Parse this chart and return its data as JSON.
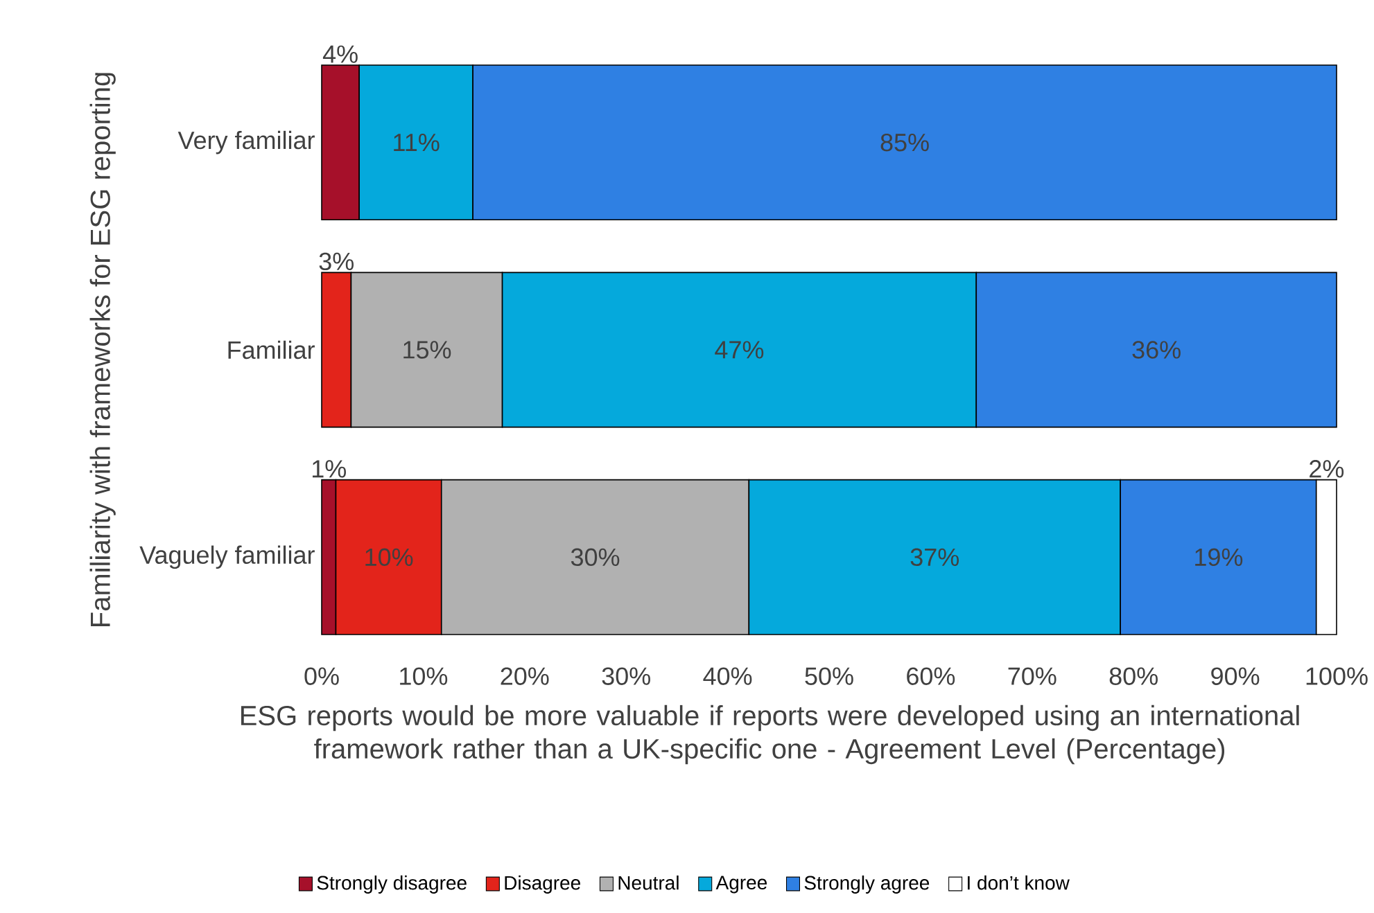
{
  "chart_data": {
    "type": "bar",
    "orientation": "horizontal",
    "stacked": true,
    "ylabel": "Familiarity with frameworks for ESG reporting",
    "xlabel": "ESG reports would be more valuable if reports were developed using an international framework rather than a UK-specific one - Agreement Level (Percentage)",
    "categories": [
      "Very familiar",
      "Familiar",
      "Vaguely familiar"
    ],
    "xlim": [
      0,
      100
    ],
    "xticks": [
      {
        "value": 0,
        "label": "0%"
      },
      {
        "value": 10,
        "label": "10%"
      },
      {
        "value": 20,
        "label": "20%"
      },
      {
        "value": 30,
        "label": "30%"
      },
      {
        "value": 40,
        "label": "40%"
      },
      {
        "value": 50,
        "label": "50%"
      },
      {
        "value": 60,
        "label": "60%"
      },
      {
        "value": 70,
        "label": "70%"
      },
      {
        "value": 80,
        "label": "80%"
      },
      {
        "value": 90,
        "label": "90%"
      },
      {
        "value": 100,
        "label": "100%"
      }
    ],
    "legend": "bottom",
    "series": [
      {
        "name": "Strongly disagree",
        "color": "#a6102a",
        "values": [
          3.7,
          null,
          1.4
        ],
        "value_labels": [
          "4%",
          null,
          "1%"
        ]
      },
      {
        "name": "Disagree",
        "color": "#e3241b",
        "values": [
          null,
          2.9,
          10.4
        ],
        "value_labels": [
          null,
          "3%",
          "10%"
        ]
      },
      {
        "name": "Neutral",
        "color": "#b1b1b1",
        "values": [
          null,
          14.9,
          30.3
        ],
        "value_labels": [
          null,
          "15%",
          "30%"
        ]
      },
      {
        "name": "Agree",
        "color": "#05a9dc",
        "values": [
          11.2,
          46.7,
          36.6
        ],
        "value_labels": [
          "11%",
          "47%",
          "37%"
        ]
      },
      {
        "name": "Strongly agree",
        "color": "#2f80e3",
        "values": [
          85.1,
          35.5,
          19.3
        ],
        "value_labels": [
          "85%",
          "36%",
          "19%"
        ]
      },
      {
        "name": "I don’t know",
        "color": "#ffffff",
        "values": [
          null,
          null,
          2.0
        ],
        "value_labels": [
          null,
          null,
          "2%"
        ]
      }
    ]
  }
}
